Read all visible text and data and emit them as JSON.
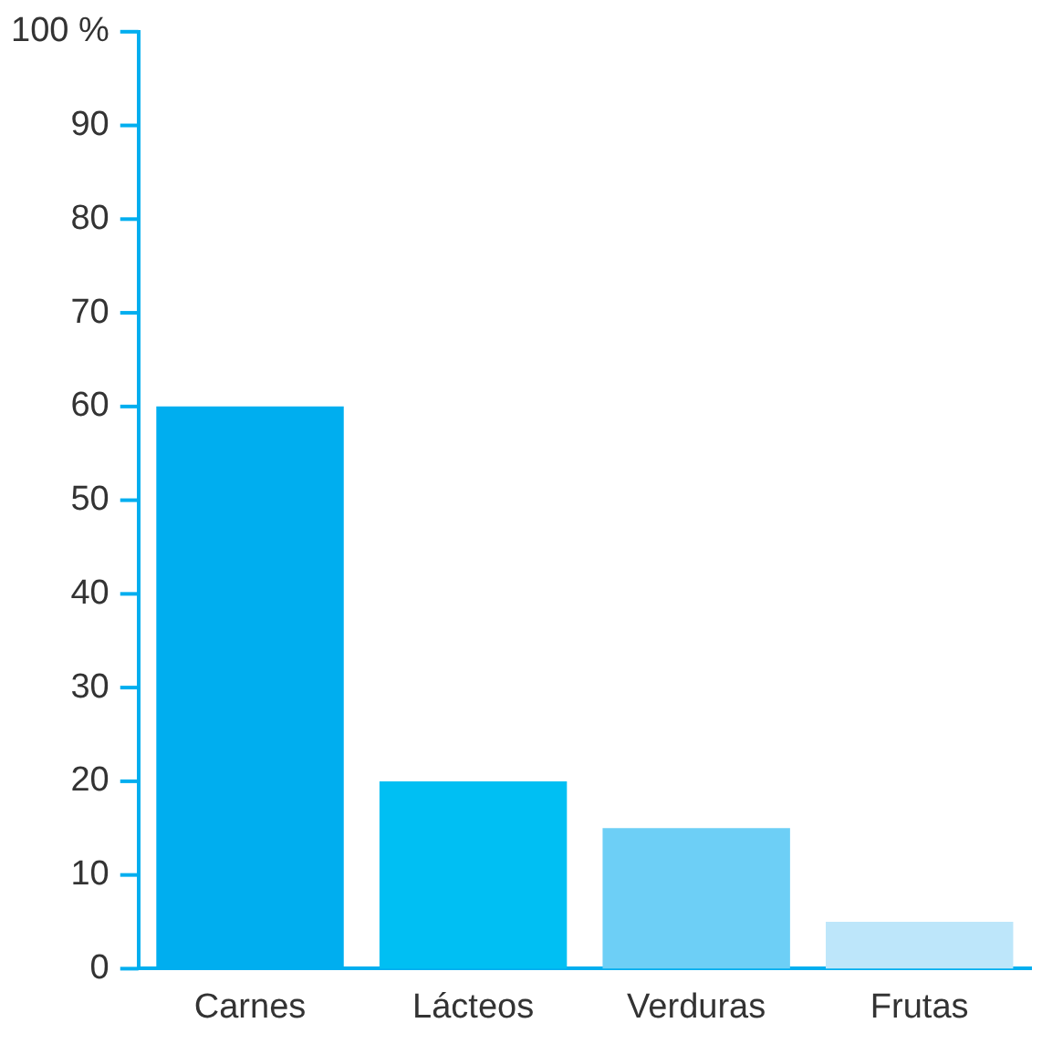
{
  "chart_data": {
    "type": "bar",
    "categories": [
      "Carnes",
      "Lácteos",
      "Verduras",
      "Frutas"
    ],
    "values": [
      60,
      20,
      15,
      5
    ],
    "colors": [
      "#00aeef",
      "#00bff3",
      "#6dcff6",
      "#bde6fa"
    ],
    "ylim": [
      0,
      100
    ],
    "yticks": [
      0,
      10,
      20,
      30,
      40,
      50,
      60,
      70,
      80,
      90,
      {
        "value": 100,
        "label": "100 %"
      }
    ],
    "grid": false,
    "legend": false
  }
}
